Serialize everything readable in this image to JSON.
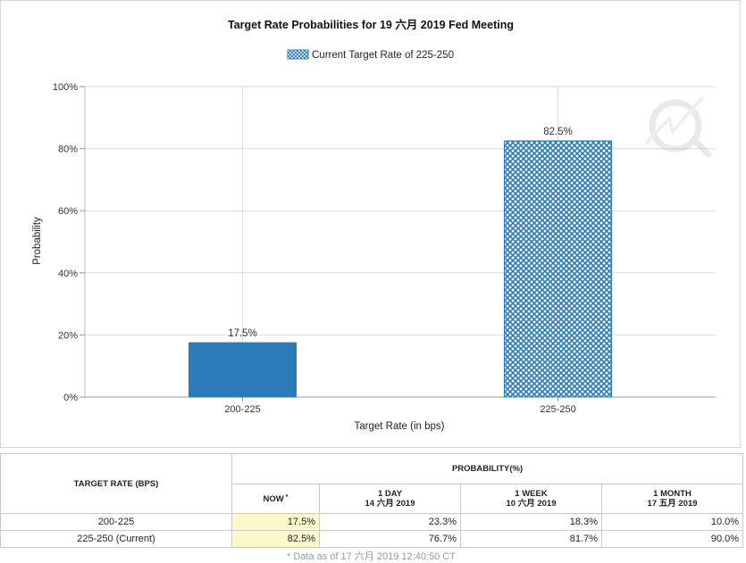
{
  "chart_data": {
    "type": "bar",
    "title": "Target Rate Probabilities for 19 六月 2019 Fed Meeting",
    "legend": {
      "label": "Current Target Rate of 225-250",
      "placement": "top-center"
    },
    "categories": [
      "200-225",
      "225-250"
    ],
    "values": [
      17.5,
      82.5
    ],
    "data_labels": [
      "17.5%",
      "82.5%"
    ],
    "current_category": "225-250",
    "xlabel": "Target Rate (in bps)",
    "ylabel": "Probability",
    "ylim": [
      0,
      100
    ],
    "yticks": [
      0,
      20,
      40,
      60,
      80,
      100
    ],
    "ytick_labels": [
      "0%",
      "20%",
      "40%",
      "60%",
      "80%",
      "100%"
    ],
    "grid": true,
    "colors": {
      "bar": "#2b7bb9",
      "current_pattern": "#2b7bb9",
      "grid": "#d9d9d9"
    }
  },
  "table": {
    "col_rate": "TARGET RATE (BPS)",
    "col_prob": "PROBABILITY(%)",
    "now_label": "NOW",
    "now_mark": "*",
    "periods": [
      {
        "label": "1 DAY",
        "date": "14 六月 2019"
      },
      {
        "label": "1 WEEK",
        "date": "10 六月 2019"
      },
      {
        "label": "1 MONTH",
        "date": "17 五月 2019"
      }
    ],
    "rows": [
      {
        "rate": "200-225",
        "now": "17.5%",
        "day": "23.3%",
        "week": "18.3%",
        "month": "10.0%"
      },
      {
        "rate": "225-250 (Current)",
        "now": "82.5%",
        "day": "76.7%",
        "week": "81.7%",
        "month": "90.0%"
      }
    ]
  },
  "footnote": "* Data as of 17 六月 2019 12:40:50 CT"
}
